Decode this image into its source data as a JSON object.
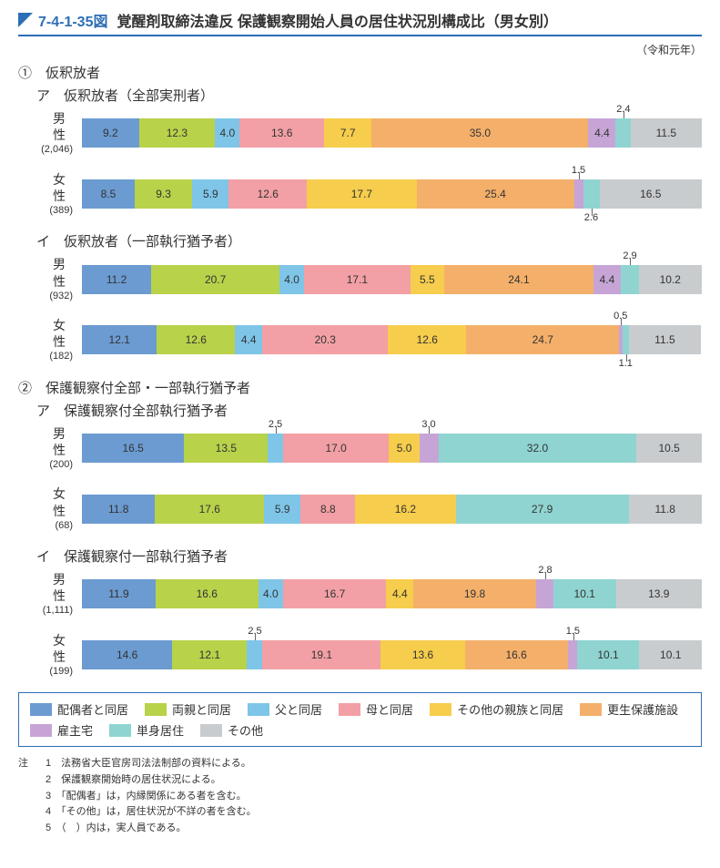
{
  "header": {
    "fignum": "7-4-1-35図",
    "title": "覚醒剤取締法違反 保護観察開始人員の居住状況別構成比（男女別）",
    "era": "（令和元年）"
  },
  "colors": {
    "c1": "#6b9bd1",
    "c2": "#b8d24a",
    "c3": "#7ec5e8",
    "c4": "#f2a0a5",
    "c5": "#f6cd4c",
    "c6": "#f4b06a",
    "c7": "#c6a5d6",
    "c8": "#8fd4d1",
    "c9": "#c9ccce"
  },
  "legend": [
    {
      "label": "配偶者と同居",
      "c": "c1"
    },
    {
      "label": "両親と同居",
      "c": "c2"
    },
    {
      "label": "父と同居",
      "c": "c3"
    },
    {
      "label": "母と同居",
      "c": "c4"
    },
    {
      "label": "その他の親族と同居",
      "c": "c5"
    },
    {
      "label": "更生保護施設",
      "c": "c6"
    },
    {
      "label": "雇主宅",
      "c": "c7"
    },
    {
      "label": "単身居住",
      "c": "c8"
    },
    {
      "label": "その他",
      "c": "c9"
    }
  ],
  "sections": [
    {
      "num": "①　仮釈放者",
      "groups": [
        {
          "sub": "ア　仮釈放者（全部実刑者）",
          "bars": [
            {
              "gender": "男　　性",
              "count": "(2,046)",
              "callouts": [
                {
                  "v": "2.4",
                  "seg": 7,
                  "pos": "top"
                }
              ],
              "segs": [
                {
                  "v": 9.2,
                  "c": "c1",
                  "t": "9.2"
                },
                {
                  "v": 12.3,
                  "c": "c2",
                  "t": "12.3"
                },
                {
                  "v": 4.0,
                  "c": "c3",
                  "t": "4.0"
                },
                {
                  "v": 13.6,
                  "c": "c4",
                  "t": "13.6"
                },
                {
                  "v": 7.7,
                  "c": "c5",
                  "t": "7.7"
                },
                {
                  "v": 35.0,
                  "c": "c6",
                  "t": "35.0"
                },
                {
                  "v": 4.4,
                  "c": "c7",
                  "t": "4.4"
                },
                {
                  "v": 2.4,
                  "c": "c8",
                  "t": ""
                },
                {
                  "v": 11.5,
                  "c": "c9",
                  "t": "11.5"
                }
              ]
            },
            {
              "gender": "女　　性",
              "count": "(389)",
              "callouts": [
                {
                  "v": "1.5",
                  "seg": 6,
                  "pos": "top"
                },
                {
                  "v": "2.6",
                  "seg": 7,
                  "pos": "bottom"
                }
              ],
              "segs": [
                {
                  "v": 8.5,
                  "c": "c1",
                  "t": "8.5"
                },
                {
                  "v": 9.3,
                  "c": "c2",
                  "t": "9.3"
                },
                {
                  "v": 5.9,
                  "c": "c3",
                  "t": "5.9"
                },
                {
                  "v": 12.6,
                  "c": "c4",
                  "t": "12.6"
                },
                {
                  "v": 17.7,
                  "c": "c5",
                  "t": "17.7"
                },
                {
                  "v": 25.4,
                  "c": "c6",
                  "t": "25.4"
                },
                {
                  "v": 1.5,
                  "c": "c7",
                  "t": ""
                },
                {
                  "v": 2.6,
                  "c": "c8",
                  "t": ""
                },
                {
                  "v": 16.5,
                  "c": "c9",
                  "t": "16.5"
                }
              ]
            }
          ]
        },
        {
          "sub": "イ　仮釈放者（一部執行猶予者）",
          "bars": [
            {
              "gender": "男　　性",
              "count": "(932)",
              "callouts": [
                {
                  "v": "2.9",
                  "seg": 7,
                  "pos": "top"
                }
              ],
              "segs": [
                {
                  "v": 11.2,
                  "c": "c1",
                  "t": "11.2"
                },
                {
                  "v": 20.7,
                  "c": "c2",
                  "t": "20.7"
                },
                {
                  "v": 4.0,
                  "c": "c3",
                  "t": "4.0"
                },
                {
                  "v": 17.1,
                  "c": "c4",
                  "t": "17.1"
                },
                {
                  "v": 5.5,
                  "c": "c5",
                  "t": "5.5"
                },
                {
                  "v": 24.1,
                  "c": "c6",
                  "t": "24.1"
                },
                {
                  "v": 4.4,
                  "c": "c7",
                  "t": "4.4"
                },
                {
                  "v": 2.9,
                  "c": "c8",
                  "t": ""
                },
                {
                  "v": 10.2,
                  "c": "c9",
                  "t": "10.2"
                }
              ]
            },
            {
              "gender": "女　　性",
              "count": "(182)",
              "callouts": [
                {
                  "v": "0.5",
                  "seg": 6,
                  "pos": "top"
                },
                {
                  "v": "1.1",
                  "seg": 7,
                  "pos": "bottom"
                }
              ],
              "segs": [
                {
                  "v": 12.1,
                  "c": "c1",
                  "t": "12.1"
                },
                {
                  "v": 12.6,
                  "c": "c2",
                  "t": "12.6"
                },
                {
                  "v": 4.4,
                  "c": "c3",
                  "t": "4.4"
                },
                {
                  "v": 20.3,
                  "c": "c4",
                  "t": "20.3"
                },
                {
                  "v": 12.6,
                  "c": "c5",
                  "t": "12.6"
                },
                {
                  "v": 24.7,
                  "c": "c6",
                  "t": "24.7"
                },
                {
                  "v": 0.5,
                  "c": "c7",
                  "t": ""
                },
                {
                  "v": 1.1,
                  "c": "c8",
                  "t": ""
                },
                {
                  "v": 11.5,
                  "c": "c9",
                  "t": "11.5"
                }
              ]
            }
          ]
        }
      ]
    },
    {
      "num": "②　保護観察付全部・一部執行猶予者",
      "groups": [
        {
          "sub": "ア　保護観察付全部執行猶予者",
          "bars": [
            {
              "gender": "男　　性",
              "count": "(200)",
              "callouts": [
                {
                  "v": "2.5",
                  "seg": 2,
                  "pos": "top"
                },
                {
                  "v": "3.0",
                  "seg": 5,
                  "pos": "top"
                }
              ],
              "segs": [
                {
                  "v": 16.5,
                  "c": "c1",
                  "t": "16.5"
                },
                {
                  "v": 13.5,
                  "c": "c2",
                  "t": "13.5"
                },
                {
                  "v": 2.5,
                  "c": "c3",
                  "t": ""
                },
                {
                  "v": 17.0,
                  "c": "c4",
                  "t": "17.0"
                },
                {
                  "v": 5.0,
                  "c": "c5",
                  "t": "5.0"
                },
                {
                  "v": 3.0,
                  "c": "c7",
                  "t": ""
                },
                {
                  "v": 32.0,
                  "c": "c8",
                  "t": "32.0"
                },
                {
                  "v": 10.5,
                  "c": "c9",
                  "t": "10.5"
                }
              ]
            },
            {
              "gender": "女　　性",
              "count": "(68)",
              "segs": [
                {
                  "v": 11.8,
                  "c": "c1",
                  "t": "11.8"
                },
                {
                  "v": 17.6,
                  "c": "c2",
                  "t": "17.6"
                },
                {
                  "v": 5.9,
                  "c": "c3",
                  "t": "5.9"
                },
                {
                  "v": 8.8,
                  "c": "c4",
                  "t": "8.8"
                },
                {
                  "v": 16.2,
                  "c": "c5",
                  "t": "16.2"
                },
                {
                  "v": 27.9,
                  "c": "c8",
                  "t": "27.9"
                },
                {
                  "v": 11.8,
                  "c": "c9",
                  "t": "11.8"
                }
              ]
            }
          ]
        },
        {
          "sub": "イ　保護観察付一部執行猶予者",
          "bars": [
            {
              "gender": "男　　性",
              "count": "(1,111)",
              "callouts": [
                {
                  "v": "2.8",
                  "seg": 6,
                  "pos": "top"
                }
              ],
              "segs": [
                {
                  "v": 11.9,
                  "c": "c1",
                  "t": "11.9"
                },
                {
                  "v": 16.6,
                  "c": "c2",
                  "t": "16.6"
                },
                {
                  "v": 4.0,
                  "c": "c3",
                  "t": "4.0"
                },
                {
                  "v": 16.7,
                  "c": "c4",
                  "t": "16.7"
                },
                {
                  "v": 4.4,
                  "c": "c5",
                  "t": "4.4"
                },
                {
                  "v": 19.8,
                  "c": "c6",
                  "t": "19.8"
                },
                {
                  "v": 2.8,
                  "c": "c7",
                  "t": ""
                },
                {
                  "v": 10.1,
                  "c": "c8",
                  "t": "10.1"
                },
                {
                  "v": 13.9,
                  "c": "c9",
                  "t": "13.9"
                }
              ]
            },
            {
              "gender": "女　　性",
              "count": "(199)",
              "callouts": [
                {
                  "v": "2.5",
                  "seg": 2,
                  "pos": "top"
                },
                {
                  "v": "1.5",
                  "seg": 6,
                  "pos": "top"
                }
              ],
              "segs": [
                {
                  "v": 14.6,
                  "c": "c1",
                  "t": "14.6"
                },
                {
                  "v": 12.1,
                  "c": "c2",
                  "t": "12.1"
                },
                {
                  "v": 2.5,
                  "c": "c3",
                  "t": ""
                },
                {
                  "v": 19.1,
                  "c": "c4",
                  "t": "19.1"
                },
                {
                  "v": 13.6,
                  "c": "c5",
                  "t": "13.6"
                },
                {
                  "v": 16.6,
                  "c": "c6",
                  "t": "16.6"
                },
                {
                  "v": 1.5,
                  "c": "c7",
                  "t": ""
                },
                {
                  "v": 10.1,
                  "c": "c8",
                  "t": "10.1"
                },
                {
                  "v": 10.1,
                  "c": "c9",
                  "t": "10.1"
                }
              ]
            }
          ]
        }
      ]
    }
  ],
  "notes": {
    "label": "注",
    "items": [
      "法務省大臣官房司法法制部の資料による。",
      "保護観察開始時の居住状況による。",
      "「配偶者」は，内縁関係にある者を含む。",
      "「その他」は，居住状況が不詳の者を含む。",
      "（　）内は，実人員である。"
    ]
  }
}
